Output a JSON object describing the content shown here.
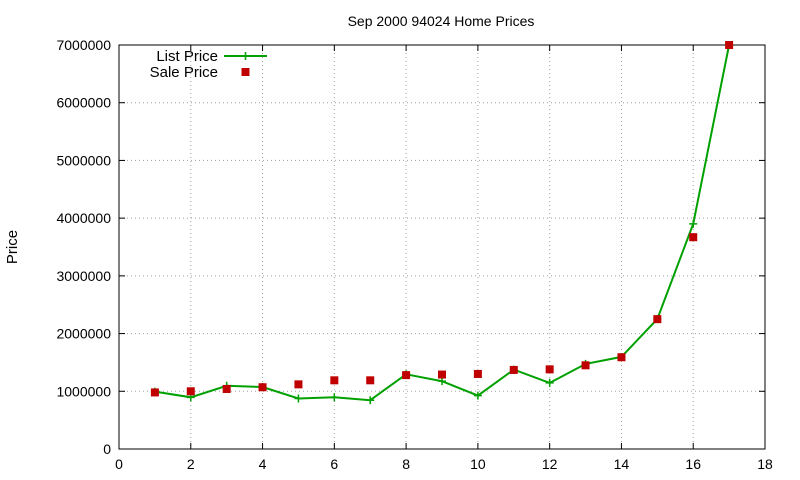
{
  "chart_data": {
    "type": "line",
    "title": "Sep 2000 94024 Home Prices",
    "xlabel": "",
    "ylabel": "Price",
    "xlim": [
      0,
      18
    ],
    "ylim": [
      0,
      7000000
    ],
    "xticks": [
      "0",
      "2",
      "4",
      "6",
      "8",
      "10",
      "12",
      "14",
      "16",
      "18"
    ],
    "yticks": [
      "0",
      "1000000",
      "2000000",
      "3000000",
      "4000000",
      "5000000",
      "6000000",
      "7000000"
    ],
    "grid": true,
    "legend_position": "top-left",
    "series": [
      {
        "name": "List Price",
        "style": "line-with-plus-markers",
        "color": "#00a000",
        "x": [
          1,
          2,
          3,
          4,
          5,
          6,
          7,
          8,
          9,
          10,
          11,
          12,
          13,
          14,
          15,
          16,
          17
        ],
        "y": [
          995000,
          895000,
          1095000,
          1075000,
          875000,
          895000,
          845000,
          1295000,
          1175000,
          925000,
          1375000,
          1145000,
          1475000,
          1595000,
          2250000,
          3900000,
          7000000
        ]
      },
      {
        "name": "Sale Price",
        "style": "square-markers",
        "color": "#c00000",
        "x": [
          1,
          2,
          3,
          4,
          5,
          6,
          7,
          8,
          9,
          10,
          11,
          12,
          13,
          14,
          15,
          16,
          17
        ],
        "y": [
          980000,
          1000000,
          1040000,
          1070000,
          1120000,
          1190000,
          1190000,
          1280000,
          1290000,
          1300000,
          1370000,
          1380000,
          1450000,
          1590000,
          2250000,
          3670000,
          7000000
        ]
      }
    ]
  }
}
